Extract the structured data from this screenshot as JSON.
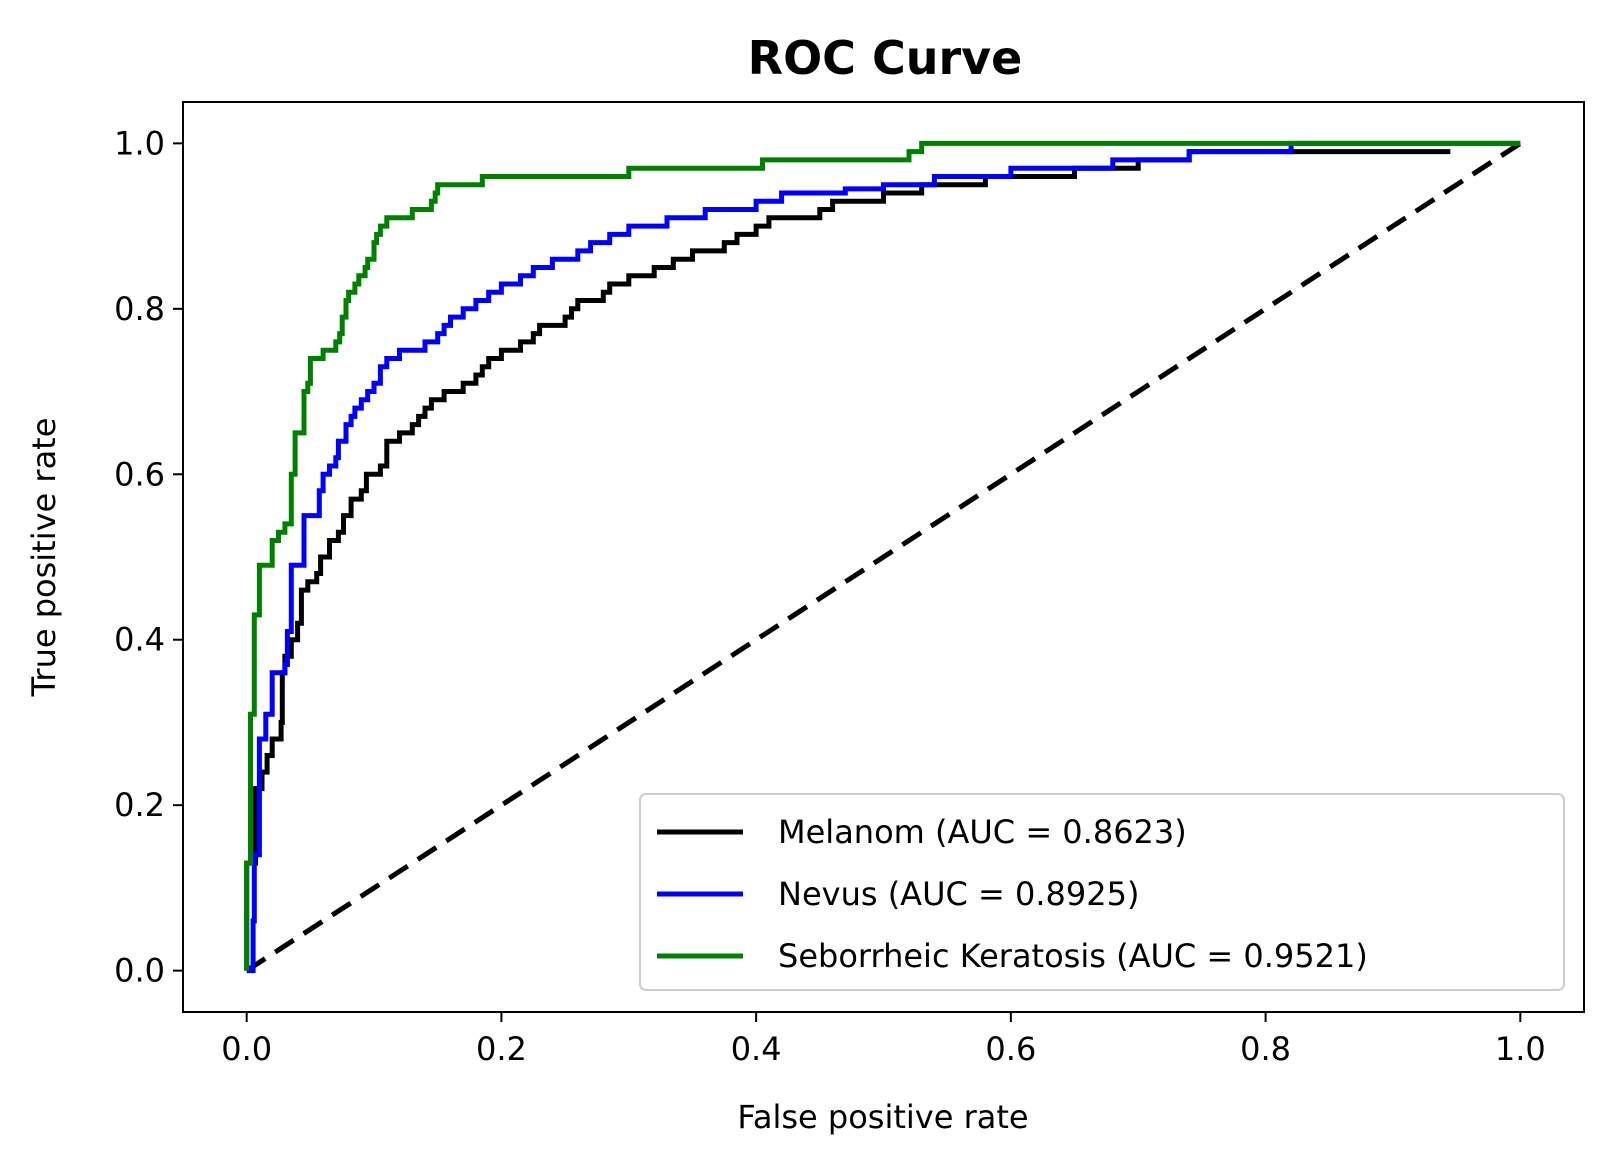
{
  "chart_data": {
    "type": "line",
    "title": "ROC Curve",
    "xlabel": "False positive rate",
    "ylabel": "True positive rate",
    "xlim": [
      -0.05,
      1.05
    ],
    "ylim": [
      -0.05,
      1.05
    ],
    "x_ticks": [
      "0.0",
      "0.2",
      "0.4",
      "0.6",
      "0.8",
      "1.0"
    ],
    "y_ticks": [
      "0.0",
      "0.2",
      "0.4",
      "0.6",
      "0.8",
      "1.0"
    ],
    "grid": false,
    "legend_position": "lower-right",
    "reference_line": {
      "x": [
        0,
        1
      ],
      "y": [
        0,
        1
      ],
      "color": "#000000",
      "style": "dashed"
    },
    "series": [
      {
        "name": "Melanom (AUC = 0.8623)",
        "color": "#000000",
        "points": [
          [
            0,
            0
          ],
          [
            0,
            0.13
          ],
          [
            0.007,
            0.14
          ],
          [
            0.007,
            0.22
          ],
          [
            0.012,
            0.24
          ],
          [
            0.016,
            0.26
          ],
          [
            0.02,
            0.28
          ],
          [
            0.027,
            0.3
          ],
          [
            0.028,
            0.36
          ],
          [
            0.03,
            0.38
          ],
          [
            0.035,
            0.4
          ],
          [
            0.04,
            0.42
          ],
          [
            0.043,
            0.46
          ],
          [
            0.048,
            0.47
          ],
          [
            0.055,
            0.48
          ],
          [
            0.058,
            0.5
          ],
          [
            0.065,
            0.52
          ],
          [
            0.072,
            0.53
          ],
          [
            0.076,
            0.55
          ],
          [
            0.082,
            0.57
          ],
          [
            0.09,
            0.58
          ],
          [
            0.094,
            0.6
          ],
          [
            0.1,
            0.6
          ],
          [
            0.105,
            0.61
          ],
          [
            0.11,
            0.64
          ],
          [
            0.12,
            0.65
          ],
          [
            0.13,
            0.66
          ],
          [
            0.135,
            0.67
          ],
          [
            0.14,
            0.68
          ],
          [
            0.145,
            0.69
          ],
          [
            0.155,
            0.7
          ],
          [
            0.17,
            0.71
          ],
          [
            0.18,
            0.72
          ],
          [
            0.185,
            0.73
          ],
          [
            0.19,
            0.74
          ],
          [
            0.2,
            0.75
          ],
          [
            0.215,
            0.76
          ],
          [
            0.225,
            0.77
          ],
          [
            0.23,
            0.78
          ],
          [
            0.24,
            0.78
          ],
          [
            0.25,
            0.79
          ],
          [
            0.255,
            0.8
          ],
          [
            0.26,
            0.81
          ],
          [
            0.27,
            0.81
          ],
          [
            0.28,
            0.82
          ],
          [
            0.285,
            0.83
          ],
          [
            0.3,
            0.84
          ],
          [
            0.315,
            0.84
          ],
          [
            0.32,
            0.85
          ],
          [
            0.335,
            0.86
          ],
          [
            0.345,
            0.86
          ],
          [
            0.35,
            0.87
          ],
          [
            0.37,
            0.87
          ],
          [
            0.375,
            0.88
          ],
          [
            0.385,
            0.89
          ],
          [
            0.4,
            0.9
          ],
          [
            0.41,
            0.91
          ],
          [
            0.435,
            0.91
          ],
          [
            0.45,
            0.92
          ],
          [
            0.46,
            0.93
          ],
          [
            0.5,
            0.94
          ],
          [
            0.52,
            0.94
          ],
          [
            0.53,
            0.95
          ],
          [
            0.56,
            0.95
          ],
          [
            0.58,
            0.96
          ],
          [
            0.62,
            0.96
          ],
          [
            0.65,
            0.97
          ],
          [
            0.68,
            0.97
          ],
          [
            0.7,
            0.98
          ],
          [
            0.72,
            0.98
          ],
          [
            0.74,
            0.99
          ],
          [
            0.945,
            0.99
          ]
        ]
      },
      {
        "name": "Nevus (AUC = 0.8925)",
        "color": "#0000ff",
        "points": [
          [
            0,
            0
          ],
          [
            0.005,
            0.06
          ],
          [
            0.006,
            0.14
          ],
          [
            0.01,
            0.15
          ],
          [
            0.01,
            0.28
          ],
          [
            0.015,
            0.28
          ],
          [
            0.015,
            0.31
          ],
          [
            0.02,
            0.32
          ],
          [
            0.02,
            0.36
          ],
          [
            0.03,
            0.37
          ],
          [
            0.032,
            0.41
          ],
          [
            0.035,
            0.44
          ],
          [
            0.035,
            0.49
          ],
          [
            0.045,
            0.49
          ],
          [
            0.045,
            0.55
          ],
          [
            0.055,
            0.55
          ],
          [
            0.057,
            0.58
          ],
          [
            0.06,
            0.6
          ],
          [
            0.065,
            0.61
          ],
          [
            0.07,
            0.62
          ],
          [
            0.072,
            0.64
          ],
          [
            0.078,
            0.66
          ],
          [
            0.082,
            0.67
          ],
          [
            0.085,
            0.68
          ],
          [
            0.09,
            0.69
          ],
          [
            0.095,
            0.7
          ],
          [
            0.1,
            0.71
          ],
          [
            0.105,
            0.73
          ],
          [
            0.11,
            0.74
          ],
          [
            0.12,
            0.75
          ],
          [
            0.13,
            0.75
          ],
          [
            0.14,
            0.76
          ],
          [
            0.15,
            0.77
          ],
          [
            0.155,
            0.78
          ],
          [
            0.16,
            0.79
          ],
          [
            0.17,
            0.8
          ],
          [
            0.18,
            0.81
          ],
          [
            0.19,
            0.82
          ],
          [
            0.2,
            0.83
          ],
          [
            0.215,
            0.84
          ],
          [
            0.225,
            0.85
          ],
          [
            0.24,
            0.86
          ],
          [
            0.26,
            0.87
          ],
          [
            0.27,
            0.88
          ],
          [
            0.285,
            0.89
          ],
          [
            0.3,
            0.9
          ],
          [
            0.31,
            0.9
          ],
          [
            0.33,
            0.91
          ],
          [
            0.35,
            0.91
          ],
          [
            0.36,
            0.92
          ],
          [
            0.38,
            0.92
          ],
          [
            0.4,
            0.93
          ],
          [
            0.42,
            0.94
          ],
          [
            0.45,
            0.94
          ],
          [
            0.47,
            0.945
          ],
          [
            0.5,
            0.95
          ],
          [
            0.54,
            0.96
          ],
          [
            0.56,
            0.96
          ],
          [
            0.6,
            0.97
          ],
          [
            0.65,
            0.97
          ],
          [
            0.68,
            0.98
          ],
          [
            0.7,
            0.98
          ],
          [
            0.74,
            0.99
          ],
          [
            0.8,
            0.99
          ],
          [
            0.82,
            1.0
          ],
          [
            1.0,
            1.0
          ]
        ]
      },
      {
        "name": "Seborrheic Keratosis (AUC = 0.9521)",
        "color": "#008000",
        "points": [
          [
            0,
            0
          ],
          [
            0,
            0.13
          ],
          [
            0.003,
            0.13
          ],
          [
            0.003,
            0.31
          ],
          [
            0.006,
            0.31
          ],
          [
            0.006,
            0.43
          ],
          [
            0.01,
            0.43
          ],
          [
            0.01,
            0.49
          ],
          [
            0.02,
            0.5
          ],
          [
            0.02,
            0.52
          ],
          [
            0.025,
            0.53
          ],
          [
            0.03,
            0.54
          ],
          [
            0.035,
            0.55
          ],
          [
            0.035,
            0.6
          ],
          [
            0.038,
            0.65
          ],
          [
            0.042,
            0.65
          ],
          [
            0.045,
            0.67
          ],
          [
            0.045,
            0.7
          ],
          [
            0.048,
            0.71
          ],
          [
            0.05,
            0.74
          ],
          [
            0.06,
            0.74
          ],
          [
            0.06,
            0.75
          ],
          [
            0.07,
            0.76
          ],
          [
            0.073,
            0.77
          ],
          [
            0.075,
            0.79
          ],
          [
            0.078,
            0.81
          ],
          [
            0.08,
            0.82
          ],
          [
            0.085,
            0.83
          ],
          [
            0.088,
            0.84
          ],
          [
            0.093,
            0.85
          ],
          [
            0.095,
            0.86
          ],
          [
            0.1,
            0.88
          ],
          [
            0.102,
            0.89
          ],
          [
            0.105,
            0.9
          ],
          [
            0.11,
            0.91
          ],
          [
            0.125,
            0.91
          ],
          [
            0.13,
            0.92
          ],
          [
            0.14,
            0.92
          ],
          [
            0.145,
            0.93
          ],
          [
            0.148,
            0.94
          ],
          [
            0.15,
            0.95
          ],
          [
            0.18,
            0.95
          ],
          [
            0.185,
            0.96
          ],
          [
            0.3,
            0.96
          ],
          [
            0.3,
            0.97
          ],
          [
            0.4,
            0.97
          ],
          [
            0.405,
            0.98
          ],
          [
            0.52,
            0.98
          ],
          [
            0.52,
            0.99
          ],
          [
            0.53,
            1.0
          ],
          [
            1.0,
            1.0
          ]
        ]
      }
    ]
  }
}
